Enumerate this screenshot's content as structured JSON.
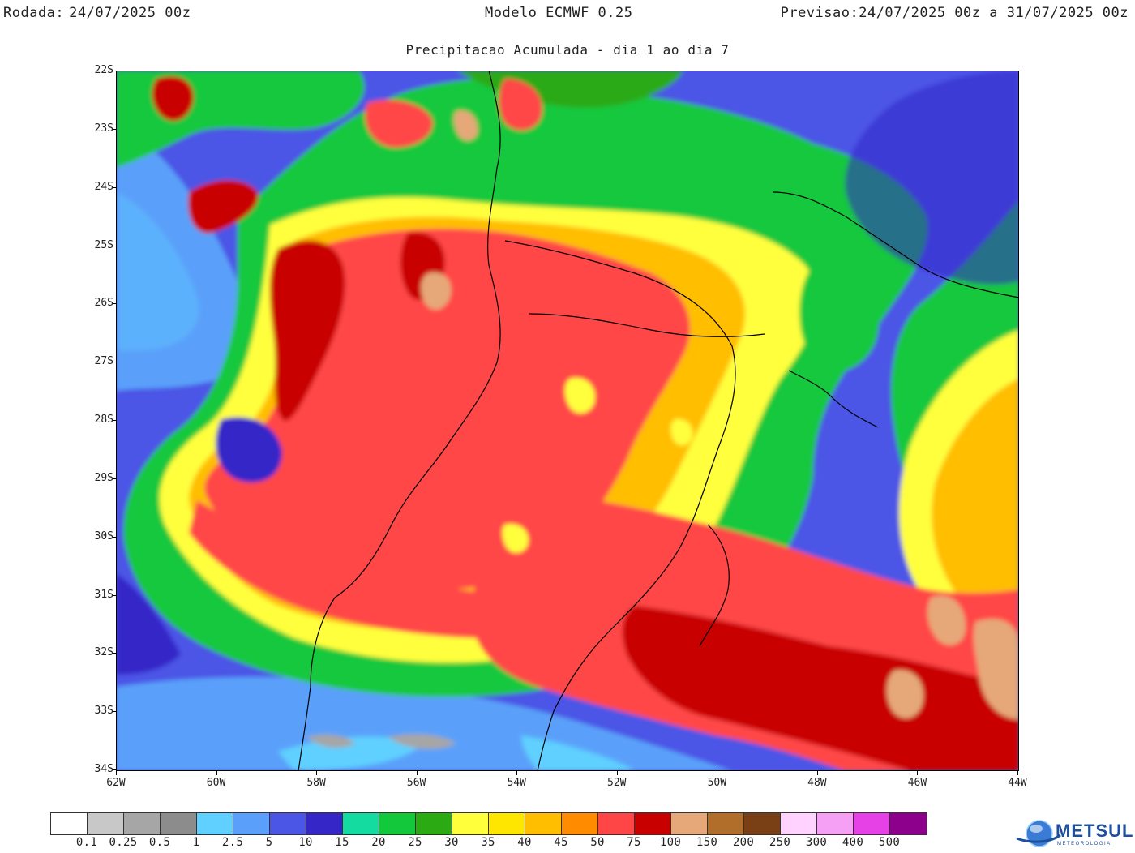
{
  "header": {
    "run_label": "Rodada:",
    "run_value": "24/07/2025 00z",
    "model": "Modelo ECMWF 0.25",
    "forecast_label": "Previsao:",
    "forecast_value": "24/07/2025 00z a 31/07/2025 00z"
  },
  "subtitle": "Precipitacao Acumulada - dia 1 ao dia 7",
  "map": {
    "lat_labels": [
      "22S",
      "23S",
      "24S",
      "25S",
      "26S",
      "27S",
      "28S",
      "29S",
      "30S",
      "31S",
      "32S",
      "33S",
      "34S"
    ],
    "lon_labels": [
      "62W",
      "60W",
      "58W",
      "56W",
      "54W",
      "52W",
      "50W",
      "48W",
      "46W",
      "44W"
    ],
    "bounds": {
      "west": -62,
      "east": -44,
      "north": -22,
      "south": -34
    }
  },
  "legend": {
    "colors": [
      "#ffffff",
      "#c8c8c8",
      "#a6a6a6",
      "#8c8c8c",
      "#5fd0ff",
      "#5aa0fa",
      "#4b55e6",
      "#3526c8",
      "#14dca0",
      "#14c83c",
      "#2caa14",
      "#ffff3c",
      "#ffe600",
      "#ffbe00",
      "#ff8c00",
      "#ff4646",
      "#c80000",
      "#e6a878",
      "#b06e2a",
      "#784014",
      "#ffd2ff",
      "#f5a0f5",
      "#e641e6",
      "#8c008c"
    ],
    "labels": [
      "0.1",
      "0.25",
      "0.5",
      "1",
      "2.5",
      "5",
      "10",
      "15",
      "20",
      "25",
      "30",
      "35",
      "40",
      "45",
      "50",
      "75",
      "100",
      "150",
      "200",
      "250",
      "300",
      "400",
      "500"
    ]
  },
  "logo": {
    "text": "METSUL",
    "subtext": "METEOROLOGIA",
    "color": "#1e4f9c"
  }
}
